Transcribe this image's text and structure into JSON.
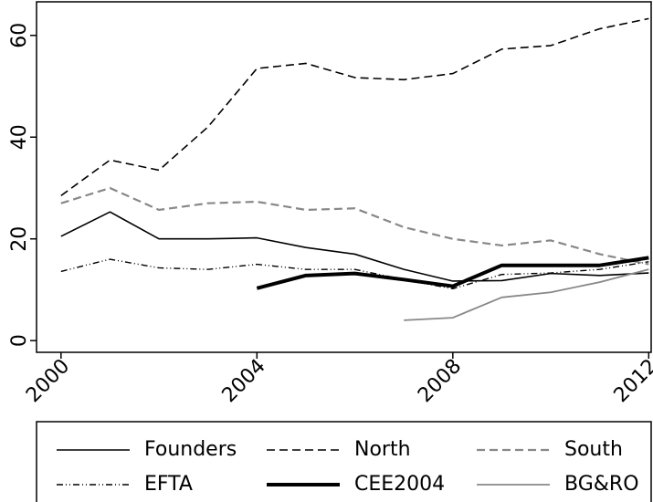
{
  "chart_data": {
    "type": "line",
    "x": [
      2000,
      2001,
      2002,
      2003,
      2004,
      2005,
      2006,
      2007,
      2008,
      2009,
      2010,
      2011,
      2012
    ],
    "xlim": [
      1999.5,
      2012.05
    ],
    "xticks": [
      2000,
      2004,
      2008,
      2012
    ],
    "ylim": [
      -2.3,
      66.6
    ],
    "yticks": [
      0,
      20,
      40,
      60
    ],
    "legend": "bottom",
    "series": [
      {
        "name": "Founders",
        "color": "#000000",
        "width": 1.6,
        "dash": "none",
        "values": [
          20.5,
          25.3,
          20,
          20,
          20.2,
          18.3,
          17,
          14,
          11.7,
          11.8,
          13.2,
          12.8,
          13.3
        ]
      },
      {
        "name": "North",
        "color": "#000000",
        "width": 1.6,
        "dash": "9 5",
        "values": [
          28.5,
          35.5,
          33.5,
          42,
          53.5,
          54.5,
          51.7,
          51.3,
          52.5,
          57.3,
          58,
          61.3,
          63.3
        ]
      },
      {
        "name": "South",
        "color": "#888888",
        "width": 2.2,
        "dash": "9 5",
        "values": [
          27,
          30,
          25.7,
          27,
          27.3,
          25.7,
          26,
          22.3,
          20,
          18.7,
          19.7,
          17,
          15
        ]
      },
      {
        "name": "EFTA",
        "color": "#000000",
        "width": 1.4,
        "dash": "7 3 1 3 1 3",
        "values": [
          13.6,
          16,
          14.3,
          14,
          15,
          14,
          14,
          12,
          10.2,
          13,
          13.3,
          14,
          15.5
        ]
      },
      {
        "name": "CEE2004",
        "color": "#000000",
        "width": 4,
        "dash": "none",
        "values": [
          null,
          null,
          null,
          null,
          10.3,
          12.8,
          13.2,
          12,
          10.7,
          14.8,
          14.8,
          14.8,
          16.3
        ]
      },
      {
        "name": "BG&RO",
        "color": "#888888",
        "width": 1.8,
        "dash": "none",
        "values": [
          null,
          null,
          null,
          null,
          null,
          null,
          null,
          4,
          4.5,
          8.5,
          9.5,
          11.5,
          14
        ]
      }
    ]
  }
}
